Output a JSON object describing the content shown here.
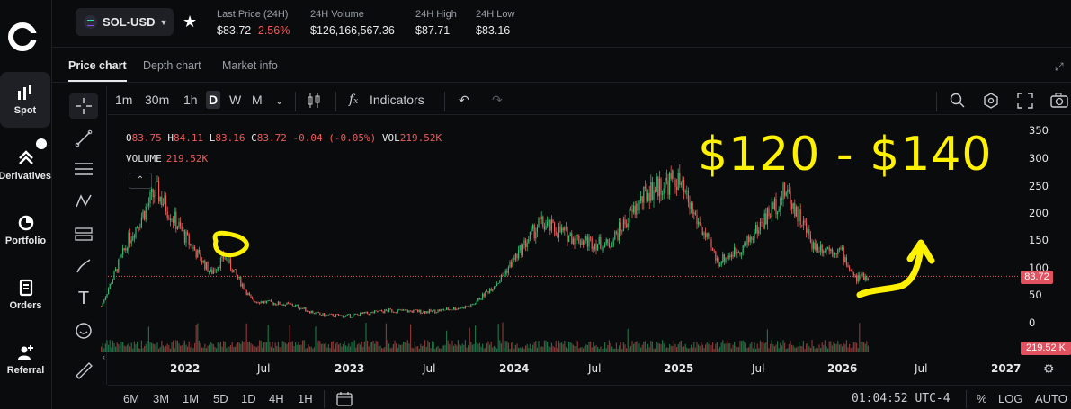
{
  "nav": {
    "items": [
      {
        "label": "Spot",
        "icon": "bar-chart-icon"
      },
      {
        "label": "Derivatives",
        "icon": "derivatives-icon"
      },
      {
        "label": "Portfolio",
        "icon": "pie-icon"
      },
      {
        "label": "Orders",
        "icon": "orders-icon"
      },
      {
        "label": "Referral",
        "icon": "add-user-icon"
      }
    ]
  },
  "header": {
    "pair": "SOL-USD",
    "stats": {
      "last_price_label": "Last Price (24H)",
      "last_price": "$83.72",
      "last_change": "-2.56%",
      "volume_label": "24H Volume",
      "volume": "$126,166,567.36",
      "high_label": "24H High",
      "high": "$87.71",
      "low_label": "24H Low",
      "low": "$83.16"
    }
  },
  "tabs": [
    "Price chart",
    "Depth chart",
    "Market info"
  ],
  "chart_toolbar": {
    "intervals": [
      "1m",
      "30m",
      "1h",
      "D",
      "W",
      "M"
    ],
    "selected_interval": "D",
    "indicators_label": "Indicators"
  },
  "legend": {
    "o_label": "O",
    "o": "83.75",
    "h_label": "H",
    "h": "84.11",
    "l_label": "L",
    "l": "83.16",
    "c_label": "C",
    "c": "83.72",
    "change": "-0.04 (-0.05%)",
    "vol_label": "VOL",
    "vol": "219.52K",
    "volume_label": "VOLUME",
    "volume": "219.52K"
  },
  "annotation_text": "$120 - $140",
  "axis": {
    "price_ticks": [
      "350",
      "300",
      "250",
      "200",
      "150",
      "100",
      "50",
      "0"
    ],
    "current_price_tag": "83.72",
    "volume_tag": "219.52 K",
    "time_ticks": [
      "2022",
      "Jul",
      "2023",
      "Jul",
      "2024",
      "Jul",
      "2025",
      "Jul",
      "2026",
      "Jul",
      "2027"
    ]
  },
  "bottom": {
    "ranges": [
      "6M",
      "3M",
      "1M",
      "5D",
      "1D",
      "4H",
      "1H"
    ],
    "clock": "01:04:52 UTC-4",
    "percent": "%",
    "log": "LOG",
    "auto": "AUTO"
  },
  "chart_data": {
    "type": "line",
    "x": [
      "2021-07",
      "2021-09",
      "2021-11",
      "2022-01",
      "2022-03",
      "2022-04",
      "2022-06",
      "2022-09",
      "2022-11",
      "2023-01",
      "2023-04",
      "2023-07",
      "2023-10",
      "2023-12",
      "2024-03",
      "2024-06",
      "2024-08",
      "2024-11",
      "2025-01",
      "2025-04",
      "2025-06",
      "2025-09",
      "2025-11",
      "2026-01",
      "2026-02",
      "2026-03"
    ],
    "series": [
      {
        "values": [
          30,
          150,
          240,
          160,
          90,
          120,
          40,
          32,
          14,
          12,
          22,
          20,
          30,
          75,
          180,
          150,
          140,
          240,
          260,
          110,
          140,
          240,
          140,
          130,
          80,
          84
        ]
      }
    ],
    "ylim": [
      0,
      350
    ],
    "colors": {
      "up": "#2fbf71",
      "down": "#f05a5a",
      "annotation": "#fff200"
    }
  }
}
